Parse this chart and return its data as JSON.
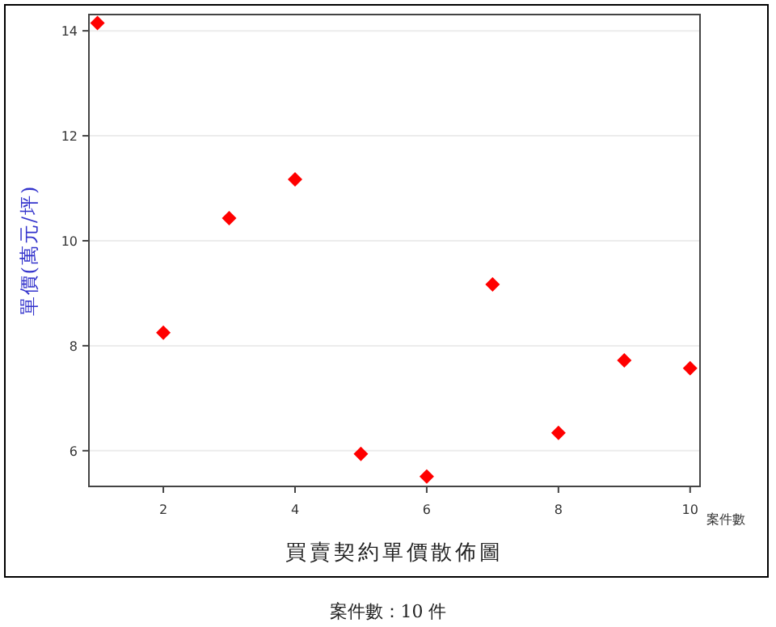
{
  "chart_data": {
    "type": "scatter",
    "title": "買賣契約單價散佈圖",
    "xlabel": "案件數",
    "ylabel": "單價(萬元/坪)",
    "annotations": [
      "案件數：10 件"
    ],
    "x": [
      1,
      2,
      3,
      4,
      5,
      6,
      7,
      8,
      9,
      10
    ],
    "series": [
      {
        "color": "#ff0000",
        "values": [
          14.15,
          8.25,
          10.43,
          11.17,
          5.94,
          5.51,
          9.17,
          6.34,
          7.72,
          7.57
        ]
      }
    ],
    "xlim": [
      0.87,
      10.15
    ],
    "ylim": [
      5.32,
      14.31
    ],
    "xticks": [
      2,
      4,
      6,
      8,
      10
    ],
    "yticks": [
      6,
      8,
      10,
      12,
      14
    ],
    "grid": "y",
    "marker": "diamond"
  }
}
